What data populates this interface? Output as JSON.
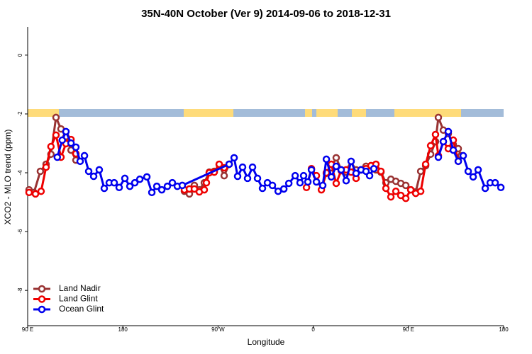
{
  "chart_data": {
    "type": "line",
    "title": "35N-40N October (Ver 9)   2014-09-06 to 2018-12-31",
    "x_label": "Longitude",
    "y_label": "XCO2 - MLO trend (ppm)",
    "xlim": [
      90,
      540
    ],
    "ylim": [
      -9.2,
      0.96
    ],
    "xticks": [
      {
        "value": 90,
        "label": "90 E"
      },
      180,
      {
        "value": 270,
        "label": "90 W"
      },
      {
        "value": 360,
        "label": "0"
      },
      {
        "value": 450,
        "label": "90 E"
      },
      {
        "value": 540,
        "label": "180"
      }
    ],
    "yticks": [
      0,
      -2,
      -4,
      -6,
      -8
    ],
    "legend": "bottom-left",
    "series": [
      {
        "name": "Land Nadir",
        "color": "#993333",
        "x": [
          91.3,
          96,
          102,
          107.4,
          112,
          116.8,
          121.5,
          126.2,
          131,
          135.6,
          null,
          238.2,
          242.9,
          247.6,
          252.3,
          257,
          261.7,
          266.4,
          271.1,
          275.8,
          280.5,
          null,
          372.4,
          377.1,
          381.7,
          386.4,
          391.1,
          395.8,
          400.5,
          405.2,
          409.9,
          414.6,
          419.3,
          424,
          428.7,
          433.4,
          438.1,
          442.8,
          447.5,
          452.2,
          456.9,
          461.6,
          466.3,
          471,
          475.6,
          478.3,
          483,
          487.7,
          492.4,
          497.1,
          499.8
        ],
        "values": [
          -4.58,
          -4.67,
          -3.95,
          -3.71,
          -3.37,
          -2.12,
          -2.51,
          -2.77,
          -3.23,
          -3.57,
          null,
          -4.63,
          -4.72,
          -4.43,
          -4.58,
          -4.34,
          -3.98,
          -3.95,
          -3.73,
          -4.1,
          -3.71,
          null,
          -4.02,
          -3.83,
          -3.49,
          -3.9,
          -3.98,
          -3.8,
          -3.9,
          -3.9,
          -3.78,
          -3.76,
          -3.9,
          -3.98,
          -4.34,
          -4.22,
          -4.29,
          -4.36,
          -4.43,
          -4.58,
          -4.65,
          -3.95,
          -3.76,
          -3.37,
          -2.94,
          -2.12,
          -2.55,
          -2.67,
          -3.04,
          -3.18,
          -3.42
        ]
      },
      {
        "name": "Land Glint",
        "color": "#ee0000",
        "x": [
          91.3,
          97.4,
          102.7,
          107.4,
          112,
          116.8,
          121.5,
          126.2,
          131,
          135.6,
          null,
          238.2,
          242.9,
          247.6,
          252.3,
          257,
          259,
          261.7,
          266.4,
          271.1,
          275.8,
          280.5,
          null,
          353.6,
          358.3,
          363,
          367.7,
          372.4,
          377.1,
          381.7,
          386.4,
          391.1,
          395.8,
          400.5,
          405.2,
          409.9,
          414.6,
          419.3,
          424,
          428.7,
          433.4,
          438.1,
          442.8,
          447.5,
          452.2,
          456.9,
          461.6,
          466.3,
          471,
          475.6,
          478.3,
          483,
          487.7,
          492.4,
          497.1
        ],
        "values": [
          -4.67,
          -4.72,
          -4.63,
          -3.81,
          -3.11,
          -2.72,
          -3.47,
          -3.01,
          -2.87,
          -3.35,
          null,
          -4.58,
          -4.55,
          -4.55,
          -4.65,
          -4.58,
          -4.34,
          -4.0,
          -3.98,
          -3.71,
          -3.83,
          -3.71,
          null,
          -4.5,
          -3.86,
          -4.1,
          -4.58,
          -4.0,
          -3.71,
          -4.36,
          -3.93,
          -3.9,
          -3.98,
          -4.19,
          -3.9,
          -3.86,
          -3.76,
          -3.71,
          -3.95,
          -4.53,
          -4.82,
          -4.63,
          -4.77,
          -4.87,
          -4.58,
          -4.7,
          -4.63,
          -3.71,
          -3.08,
          -2.7,
          -3.42,
          -2.94,
          -3.18,
          -2.89,
          -3.61
        ]
      },
      {
        "name": "Ocean Glint",
        "color": "#0000ee",
        "x": [
          118,
          122.7,
          126.2,
          131,
          135.6,
          139.6,
          143.7,
          147.7,
          152.4,
          157.7,
          162.4,
          167.1,
          171.8,
          176.5,
          181.9,
          186.6,
          191.3,
          196,
          202.7,
          207.4,
          212.1,
          216.8,
          222.1,
          226.8,
          231.5,
          236.2,
          280.5,
          285.2,
          288.5,
          293.2,
          297.9,
          302.6,
          307.3,
          312,
          316.7,
          321.4,
          326.8,
          332.2,
          336.9,
          342.9,
          347.5,
          350.9,
          354.9,
          358.3,
          363,
          369,
          372.4,
          377.1,
          381.7,
          386.4,
          391.1,
          395.8,
          400.5,
          405.2,
          409.9,
          413.3,
          417.3,
          null,
          478.3,
          483,
          487.7,
          492.4,
          497.1,
          501.8,
          506.5,
          511.2,
          515.9,
          522.6,
          527.3,
          532,
          537.4
        ],
        "values": [
          -3.47,
          -2.89,
          -2.6,
          -2.99,
          -3.13,
          -3.61,
          -3.42,
          -3.95,
          -4.12,
          -3.9,
          -4.53,
          -4.34,
          -4.34,
          -4.5,
          -4.19,
          -4.46,
          -4.34,
          -4.22,
          -4.14,
          -4.67,
          -4.46,
          -4.58,
          -4.46,
          -4.34,
          -4.46,
          -4.43,
          -3.71,
          -3.49,
          -4.12,
          -3.81,
          -4.19,
          -3.81,
          -4.19,
          -4.53,
          -4.34,
          -4.43,
          -4.63,
          -4.55,
          -4.36,
          -4.1,
          -4.34,
          -4.1,
          -4.31,
          -3.9,
          -4.31,
          -4.43,
          -3.54,
          -4.14,
          -3.78,
          -3.9,
          -4.27,
          -3.61,
          -4.02,
          -3.9,
          -3.95,
          -4.1,
          -3.86,
          null,
          -3.47,
          -2.94,
          -2.6,
          -3.23,
          -3.61,
          -3.42,
          -3.95,
          -4.14,
          -3.9,
          -4.53,
          -4.34,
          -4.34,
          -4.5
        ]
      }
    ]
  }
}
